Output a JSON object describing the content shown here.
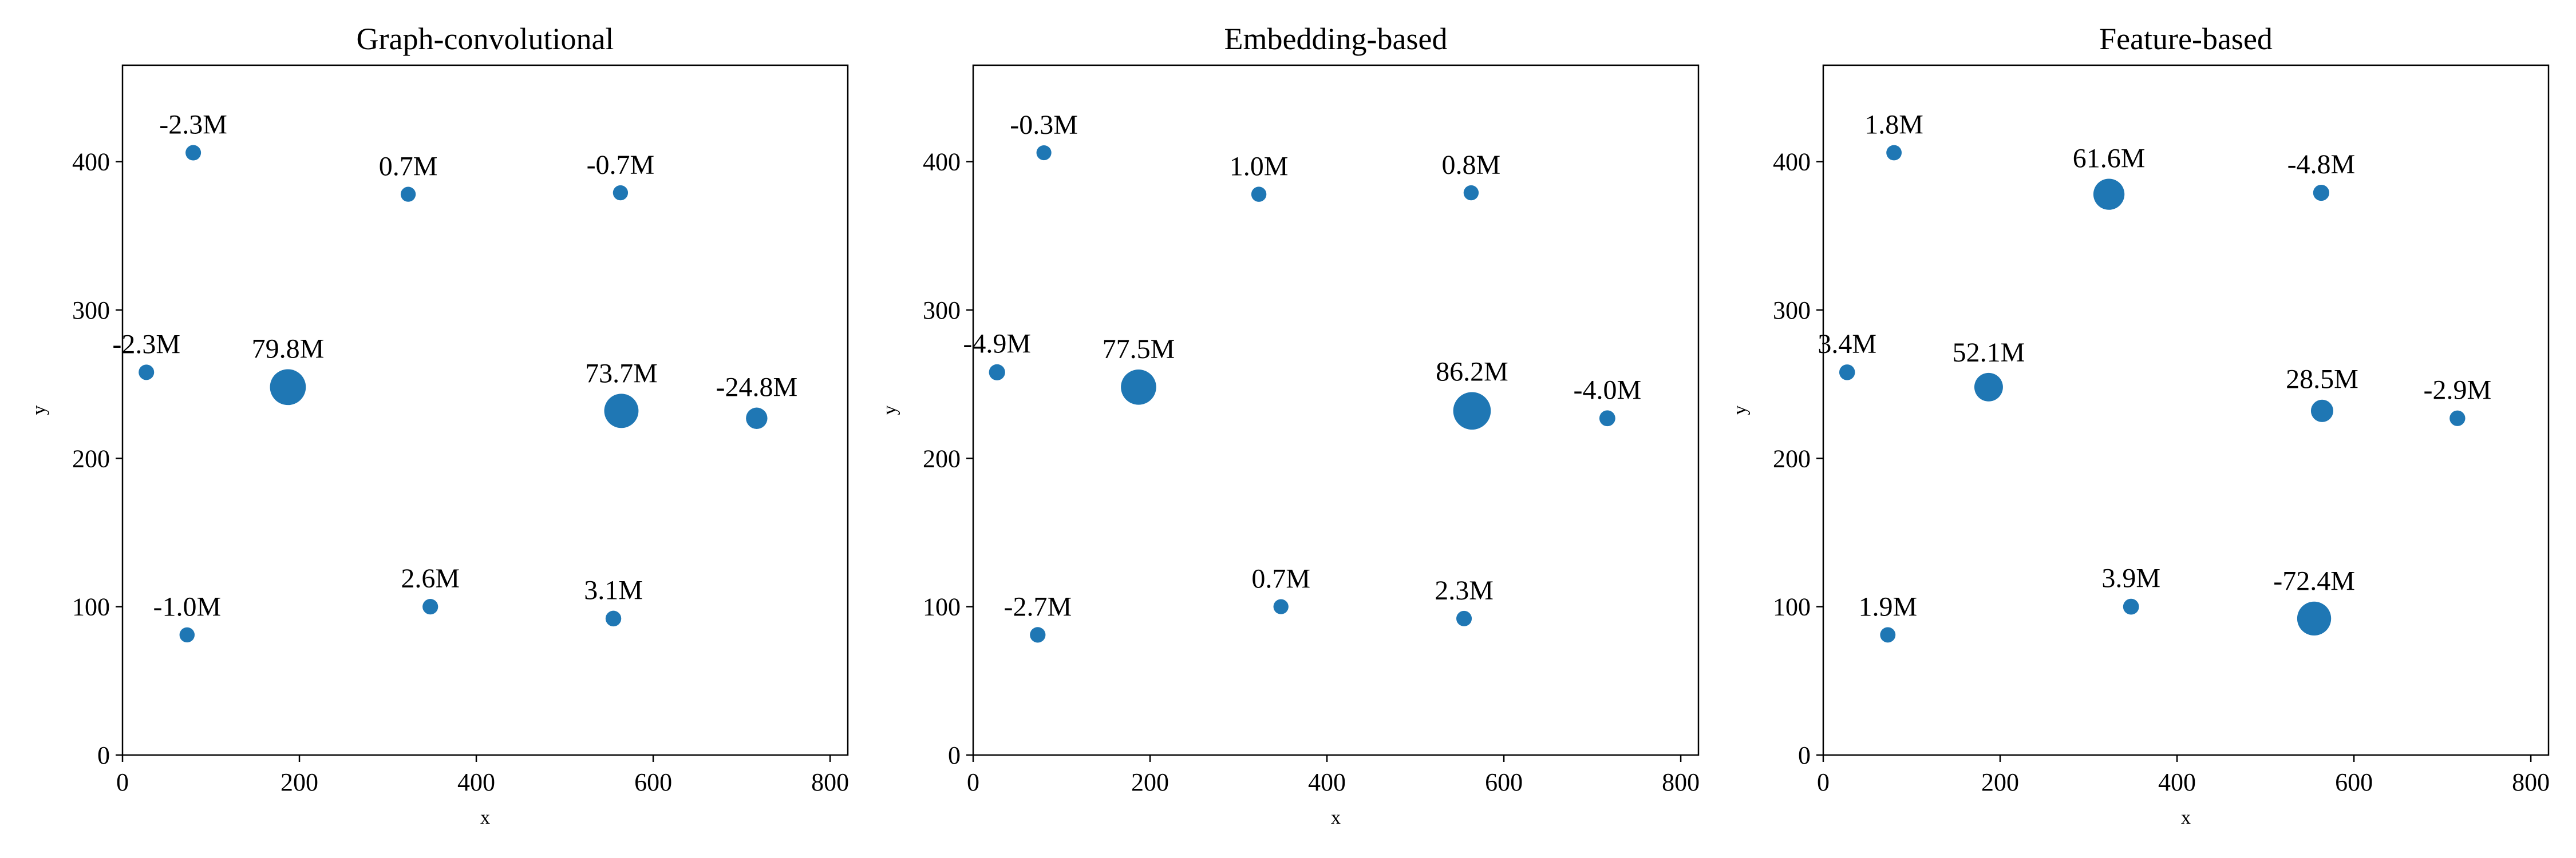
{
  "chart_data": [
    {
      "type": "scatter",
      "title": "Graph-convolutional",
      "xlabel": "x",
      "ylabel": "y",
      "xlim": [
        0,
        820
      ],
      "ylim": [
        0,
        465
      ],
      "xticks": [
        0,
        200,
        400,
        600,
        800
      ],
      "yticks": [
        0,
        100,
        200,
        300,
        400
      ],
      "grid": false,
      "point_color": "#1f77b4",
      "points": [
        {
          "x": 80,
          "y": 406,
          "size": 2.3,
          "label": "-2.3M"
        },
        {
          "x": 323,
          "y": 378,
          "size": 0.7,
          "label": "0.7M"
        },
        {
          "x": 563,
          "y": 379,
          "size": 0.7,
          "label": "-0.7M"
        },
        {
          "x": 27,
          "y": 258,
          "size": 2.3,
          "label": "-2.3M"
        },
        {
          "x": 187,
          "y": 248,
          "size": 79.8,
          "label": "79.8M"
        },
        {
          "x": 564,
          "y": 232,
          "size": 73.7,
          "label": "73.7M"
        },
        {
          "x": 717,
          "y": 227,
          "size": 24.8,
          "label": "-24.8M"
        },
        {
          "x": 73,
          "y": 81,
          "size": 1.0,
          "label": "-1.0M"
        },
        {
          "x": 348,
          "y": 100,
          "size": 2.6,
          "label": "2.6M"
        },
        {
          "x": 555,
          "y": 92,
          "size": 3.1,
          "label": "3.1M"
        }
      ]
    },
    {
      "type": "scatter",
      "title": "Embedding-based",
      "xlabel": "x",
      "ylabel": "y",
      "xlim": [
        0,
        820
      ],
      "ylim": [
        0,
        465
      ],
      "xticks": [
        0,
        200,
        400,
        600,
        800
      ],
      "yticks": [
        0,
        100,
        200,
        300,
        400
      ],
      "grid": false,
      "point_color": "#1f77b4",
      "points": [
        {
          "x": 80,
          "y": 406,
          "size": 0.3,
          "label": "-0.3M"
        },
        {
          "x": 323,
          "y": 378,
          "size": 1.0,
          "label": "1.0M"
        },
        {
          "x": 563,
          "y": 379,
          "size": 0.8,
          "label": "0.8M"
        },
        {
          "x": 27,
          "y": 258,
          "size": 4.9,
          "label": "-4.9M"
        },
        {
          "x": 187,
          "y": 248,
          "size": 77.5,
          "label": "77.5M"
        },
        {
          "x": 564,
          "y": 232,
          "size": 86.2,
          "label": "86.2M"
        },
        {
          "x": 717,
          "y": 227,
          "size": 4.0,
          "label": "-4.0M"
        },
        {
          "x": 73,
          "y": 81,
          "size": 2.7,
          "label": "-2.7M"
        },
        {
          "x": 348,
          "y": 100,
          "size": 0.7,
          "label": "0.7M"
        },
        {
          "x": 555,
          "y": 92,
          "size": 2.3,
          "label": "2.3M"
        }
      ]
    },
    {
      "type": "scatter",
      "title": "Feature-based",
      "xlabel": "x",
      "ylabel": "y",
      "xlim": [
        0,
        820
      ],
      "ylim": [
        0,
        465
      ],
      "xticks": [
        0,
        200,
        400,
        600,
        800
      ],
      "yticks": [
        0,
        100,
        200,
        300,
        400
      ],
      "grid": false,
      "point_color": "#1f77b4",
      "points": [
        {
          "x": 80,
          "y": 406,
          "size": 1.8,
          "label": "1.8M"
        },
        {
          "x": 323,
          "y": 378,
          "size": 61.6,
          "label": "61.6M"
        },
        {
          "x": 563,
          "y": 379,
          "size": 4.8,
          "label": "-4.8M"
        },
        {
          "x": 27,
          "y": 258,
          "size": 3.4,
          "label": "3.4M"
        },
        {
          "x": 187,
          "y": 248,
          "size": 52.1,
          "label": "52.1M"
        },
        {
          "x": 564,
          "y": 232,
          "size": 28.5,
          "label": "28.5M"
        },
        {
          "x": 717,
          "y": 227,
          "size": 2.9,
          "label": "-2.9M"
        },
        {
          "x": 73,
          "y": 81,
          "size": 1.9,
          "label": "1.9M"
        },
        {
          "x": 348,
          "y": 100,
          "size": 3.9,
          "label": "3.9M"
        },
        {
          "x": 555,
          "y": 92,
          "size": 72.4,
          "label": "-72.4M"
        }
      ]
    }
  ]
}
